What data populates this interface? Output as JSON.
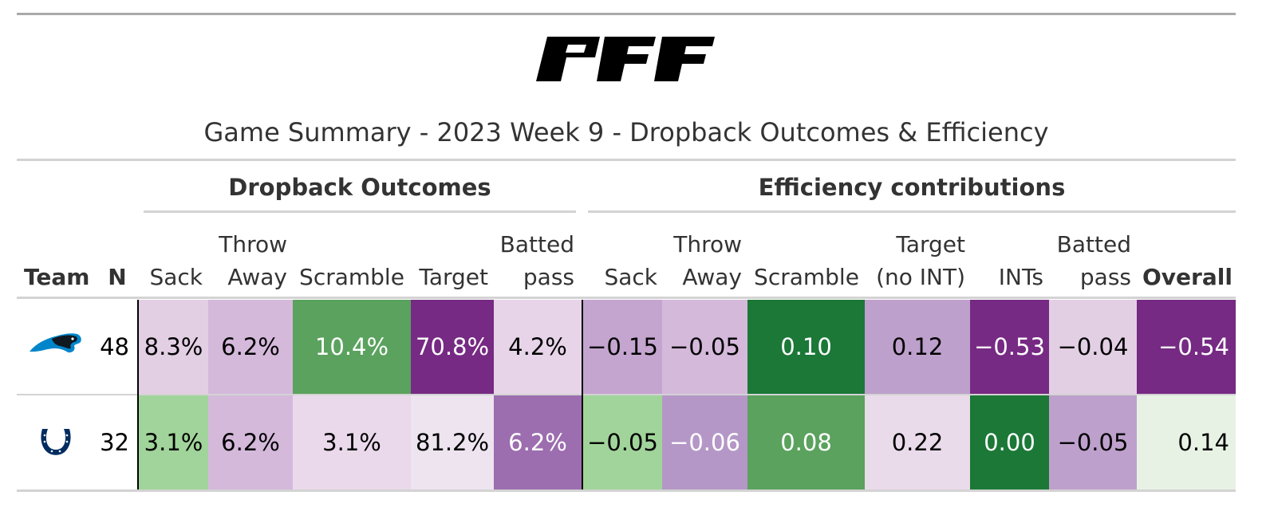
{
  "logo_text": "PFF",
  "title": "Game Summary - 2023 Week 9 - Dropback Outcomes & Efficiency",
  "spanners": {
    "dropback": "Dropback Outcomes",
    "efficiency": "Efficiency contributions"
  },
  "headers": {
    "team": "Team",
    "n": "N",
    "sack": "Sack",
    "throw_away_1": "Throw",
    "throw_away_2": "Away",
    "scramble": "Scramble",
    "target": "Target",
    "batted_1": "Batted",
    "batted_2": "pass",
    "eff_sack": "Sack",
    "eff_throw_1": "Throw",
    "eff_throw_2": "Away",
    "eff_scramble": "Scramble",
    "eff_target_1": "Target",
    "eff_target_2": "(no INT)",
    "eff_ints": "INTs",
    "eff_batted_1": "Batted",
    "eff_batted_2": "pass",
    "overall": "Overall"
  },
  "rows": [
    {
      "team_icon": "panthers-logo-icon",
      "n": "48",
      "sack": "8.3%",
      "throw_away": "6.2%",
      "scramble": "10.4%",
      "target": "70.8%",
      "batted": "4.2%",
      "eff_sack": "−0.15",
      "eff_throw": "−0.05",
      "eff_scramble": "0.10",
      "eff_target": "0.12",
      "eff_ints": "−0.53",
      "eff_batted": "−0.04",
      "overall": "−0.54"
    },
    {
      "team_icon": "colts-horseshoe-icon",
      "n": "32",
      "sack": "3.1%",
      "throw_away": "6.2%",
      "scramble": "3.1%",
      "target": "81.2%",
      "batted": "6.2%",
      "eff_sack": "−0.05",
      "eff_throw": "−0.06",
      "eff_scramble": "0.08",
      "eff_target": "0.22",
      "eff_ints": "0.00",
      "eff_batted": "−0.05",
      "overall": "0.14"
    }
  ],
  "colors": {
    "row1": {
      "sack": "#e2cfe4",
      "throw_away": "#d4b9db",
      "scramble": "#5aa25e",
      "target": "#762a83",
      "batted": "#e7d4e8",
      "eff_sack": "#c4a5cf",
      "eff_throw": "#d4b9db",
      "eff_scramble": "#1b7837",
      "eff_target": "#bea0cc",
      "eff_ints": "#762a83",
      "eff_batted": "#e2cfe4",
      "overall": "#762a83"
    },
    "row2": {
      "sack": "#a1d49a",
      "throw_away": "#d4b9db",
      "scramble": "#ead9eb",
      "target": "#ede4ef",
      "batted": "#9c6daf",
      "eff_sack": "#a1d49a",
      "eff_throw": "#b497c6",
      "eff_scramble": "#5aa25e",
      "eff_target": "#eadbeb",
      "eff_ints": "#1b7837",
      "eff_batted": "#bea0cc",
      "overall": "#e7f2e4"
    },
    "panthers_blue": "#0085ca",
    "colts_blue": "#002c5f"
  }
}
